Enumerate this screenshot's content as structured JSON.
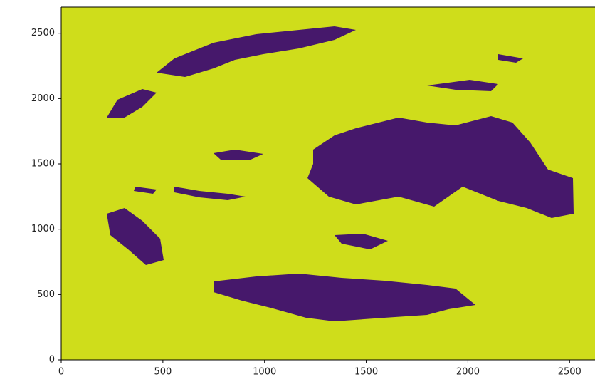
{
  "chart_data": {
    "type": "image",
    "xlim": [
      0,
      2625
    ],
    "ylim": [
      0,
      2700
    ],
    "xticks": [
      0,
      500,
      1000,
      1500,
      2000,
      2500
    ],
    "yticks": [
      0,
      500,
      1000,
      1500,
      2000,
      2500
    ],
    "colors": [
      "#46186b",
      "#cfdd1b"
    ]
  }
}
